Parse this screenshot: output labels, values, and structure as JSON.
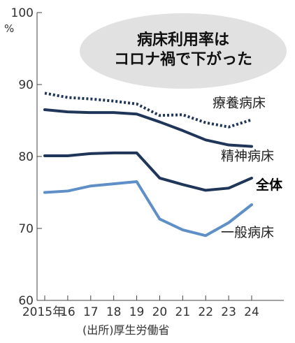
{
  "chart_data": {
    "type": "line",
    "title_lines": [
      "病床利用率は",
      "コロナ禍で下がった"
    ],
    "y_unit": "%",
    "source": "(出所)厚生労働省",
    "ylim": [
      60,
      100
    ],
    "y_ticks": [
      "60",
      "70",
      "80",
      "90",
      "100"
    ],
    "x": [
      "2015年",
      "16",
      "17",
      "18",
      "19",
      "20",
      "21",
      "22",
      "23",
      "24"
    ],
    "grid": false,
    "series": [
      {
        "name": "療養病床",
        "color": "#1f3658",
        "style": "dotted",
        "label_bold": false,
        "values": [
          88.8,
          88.2,
          88.0,
          87.7,
          87.3,
          85.7,
          85.8,
          84.7,
          84.1,
          85.1
        ]
      },
      {
        "name": "精神病床",
        "color": "#1f3658",
        "style": "solid",
        "label_bold": false,
        "values": [
          86.5,
          86.2,
          86.1,
          86.1,
          85.9,
          84.8,
          83.6,
          82.3,
          81.6,
          81.4
        ]
      },
      {
        "name": "全体",
        "color": "#1f3658",
        "style": "solid",
        "label_bold": true,
        "values": [
          80.1,
          80.1,
          80.4,
          80.5,
          80.5,
          77.0,
          76.1,
          75.3,
          75.6,
          77.0
        ]
      },
      {
        "name": "一般病床",
        "color": "#5e8fc6",
        "style": "solid",
        "label_bold": false,
        "values": [
          75.0,
          75.2,
          75.9,
          76.2,
          76.5,
          71.3,
          69.8,
          69.0,
          70.8,
          73.3
        ]
      }
    ]
  }
}
